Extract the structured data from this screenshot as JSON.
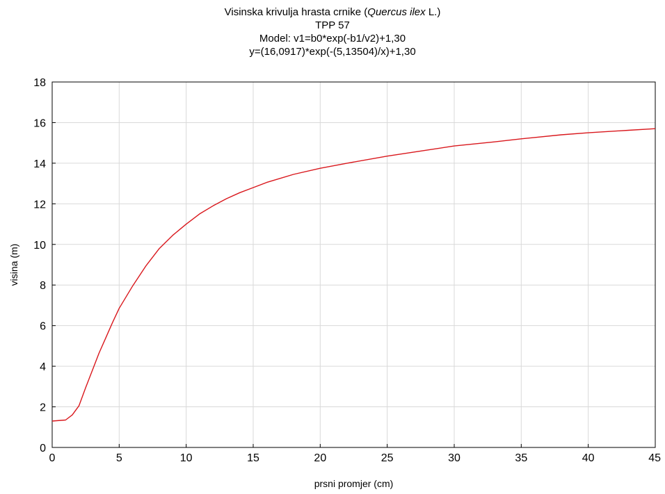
{
  "chart_data": {
    "type": "line",
    "title_main": "Visinska krivulja hrasta crnike (",
    "title_species": "Quercus ilex",
    "title_author": " L.)",
    "title_plot": "TPP 57",
    "title_model": "Model: v1=b0*exp(-b1/v2)+1,30",
    "title_equation": "y=(16,0917)*exp(-(5,13504)/x)+1,30",
    "xlabel": "prsni promjer (cm)",
    "ylabel": "visina (m)",
    "xlim": [
      0,
      45
    ],
    "ylim": [
      0,
      18
    ],
    "xticks": [
      "0",
      "5",
      "10",
      "15",
      "20",
      "25",
      "30",
      "35",
      "40",
      "45"
    ],
    "yticks": [
      "0",
      "2",
      "4",
      "6",
      "8",
      "10",
      "12",
      "14",
      "16",
      "18"
    ],
    "grid": true,
    "series": [
      {
        "color": "#d9171c",
        "x": [
          0,
          1,
          1.5,
          2,
          2.5,
          3,
          3.5,
          4,
          4.5,
          5,
          6,
          7,
          8,
          9,
          10,
          11,
          12,
          13,
          14,
          15,
          16,
          18,
          20,
          22,
          25,
          28,
          30,
          33,
          35,
          38,
          40,
          43,
          45
        ],
        "y": [
          1.3,
          1.35,
          1.6,
          2.05,
          2.95,
          3.8,
          4.65,
          5.4,
          6.15,
          6.85,
          7.95,
          8.95,
          9.8,
          10.45,
          11.0,
          11.5,
          11.9,
          12.25,
          12.55,
          12.8,
          13.05,
          13.45,
          13.75,
          14.0,
          14.35,
          14.65,
          14.85,
          15.05,
          15.2,
          15.4,
          15.5,
          15.62,
          15.7
        ]
      }
    ]
  }
}
